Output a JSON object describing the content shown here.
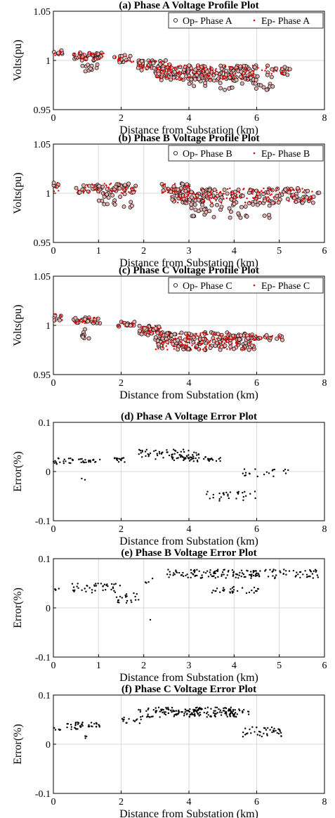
{
  "chart_data": [
    {
      "type": "scatter",
      "title": "(a) Phase A Voltage Profile Plot",
      "xlabel": "Distance from Substation (km)",
      "ylabel": "Volts(pu)",
      "xlim": [
        0,
        8
      ],
      "ylim": [
        0.95,
        1.05
      ],
      "xticks": [
        "0",
        "2",
        "4",
        "6",
        "8"
      ],
      "yticks": [
        "0.95",
        "1",
        "1.05"
      ],
      "grid": true,
      "legend_position": "top-right",
      "series": [
        {
          "name": "Op- Phase A",
          "marker": "circle",
          "color": "#000000",
          "clusters": [
            [
              0.0,
              0.3,
              1.005,
              1.012,
              6
            ],
            [
              0.6,
              1.5,
              1.0,
              1.008,
              30
            ],
            [
              0.8,
              1.3,
              0.988,
              0.998,
              10
            ],
            [
              1.8,
              2.4,
              0.998,
              1.006,
              14
            ],
            [
              2.5,
              3.5,
              0.99,
              1.0,
              40
            ],
            [
              3.0,
              6.0,
              0.98,
              0.995,
              140
            ],
            [
              4.0,
              6.6,
              0.97,
              0.985,
              40
            ],
            [
              6.0,
              7.0,
              0.985,
              0.995,
              16
            ]
          ]
        },
        {
          "name": "Ep- Phase A",
          "marker": "dot",
          "color": "#e00000",
          "clusters": [
            [
              0.0,
              0.3,
              1.005,
              1.012,
              6
            ],
            [
              0.6,
              1.5,
              1.0,
              1.008,
              30
            ],
            [
              1.8,
              2.4,
              0.998,
              1.006,
              14
            ],
            [
              2.5,
              3.5,
              0.99,
              1.0,
              40
            ],
            [
              3.0,
              6.0,
              0.98,
              0.995,
              140
            ],
            [
              6.0,
              7.0,
              0.985,
              0.995,
              16
            ]
          ]
        }
      ]
    },
    {
      "type": "scatter",
      "title": "(b) Phase B Voltage Profile Plot",
      "xlabel": "Distance from Substation (km)",
      "ylabel": "Volts(pu)",
      "xlim": [
        0,
        6
      ],
      "ylim": [
        0.95,
        1.05
      ],
      "xticks": [
        "0",
        "1",
        "2",
        "3",
        "4",
        "5",
        "6"
      ],
      "yticks": [
        "0.95",
        "1",
        "1.05"
      ],
      "grid": true,
      "legend_position": "top-right",
      "series": [
        {
          "name": "Op- Phase B",
          "marker": "circle",
          "color": "#000000",
          "clusters": [
            [
              0.0,
              0.15,
              1.0,
              1.012,
              5
            ],
            [
              0.5,
              1.9,
              1.0,
              1.01,
              50
            ],
            [
              1.0,
              1.8,
              0.985,
              1.0,
              20
            ],
            [
              2.4,
              3.0,
              1.0,
              1.01,
              24
            ],
            [
              2.6,
              5.6,
              0.99,
              1.005,
              140
            ],
            [
              3.0,
              4.8,
              0.975,
              0.99,
              40
            ],
            [
              5.6,
              5.9,
              0.99,
              1.003,
              8
            ]
          ]
        },
        {
          "name": "Ep- Phase B",
          "marker": "dot",
          "color": "#e00000",
          "clusters": [
            [
              0.0,
              0.15,
              1.0,
              1.012,
              5
            ],
            [
              0.5,
              1.9,
              1.0,
              1.01,
              50
            ],
            [
              2.4,
              3.0,
              1.0,
              1.01,
              24
            ],
            [
              2.6,
              5.6,
              0.99,
              1.005,
              140
            ],
            [
              5.6,
              5.9,
              0.99,
              1.003,
              8
            ]
          ]
        }
      ]
    },
    {
      "type": "scatter",
      "title": "(c) Phase C Voltage Profile Plot",
      "xlabel": "Distance from Substation (km)",
      "ylabel": "Volts(pu)",
      "xlim": [
        0,
        8
      ],
      "ylim": [
        0.95,
        1.05
      ],
      "xticks": [
        "0",
        "2",
        "4",
        "6",
        "8"
      ],
      "yticks": [
        "0.95",
        "1",
        "1.05"
      ],
      "grid": true,
      "legend_position": "top-right",
      "series": [
        {
          "name": "Op- Phase C",
          "marker": "circle",
          "color": "#000000",
          "clusters": [
            [
              0.0,
              0.3,
              1.005,
              1.012,
              6
            ],
            [
              0.6,
              1.4,
              1.002,
              1.008,
              24
            ],
            [
              0.8,
              1.1,
              0.985,
              0.998,
              8
            ],
            [
              1.9,
              2.4,
              0.998,
              1.004,
              12
            ],
            [
              2.5,
              3.2,
              0.99,
              1.0,
              24
            ],
            [
              3.0,
              6.0,
              0.975,
              0.993,
              150
            ],
            [
              5.0,
              6.8,
              0.985,
              0.99,
              24
            ]
          ]
        },
        {
          "name": "Ep- Phase C",
          "marker": "dot",
          "color": "#e00000",
          "clusters": [
            [
              0.0,
              0.3,
              1.005,
              1.012,
              6
            ],
            [
              0.6,
              1.4,
              1.002,
              1.008,
              24
            ],
            [
              1.9,
              2.4,
              0.998,
              1.004,
              12
            ],
            [
              2.5,
              3.2,
              0.99,
              1.0,
              24
            ],
            [
              3.0,
              6.0,
              0.975,
              0.993,
              150
            ],
            [
              5.0,
              6.8,
              0.985,
              0.99,
              24
            ]
          ]
        }
      ]
    },
    {
      "type": "scatter",
      "title": "(d) Phase A Voltage Error Plot",
      "xlabel": "Distance from Substation (km)",
      "ylabel": "Error(%)",
      "xlim": [
        0,
        8
      ],
      "ylim": [
        -0.1,
        0.1
      ],
      "xticks": [
        "0",
        "2",
        "4",
        "6",
        "8"
      ],
      "yticks": [
        "-0.1",
        "0",
        "0.1"
      ],
      "grid": true,
      "series": [
        {
          "name": "",
          "marker": "dot",
          "color": "#000000",
          "clusters": [
            [
              0.0,
              1.4,
              0.015,
              0.028,
              40
            ],
            [
              1.8,
              2.4,
              0.018,
              0.028,
              14
            ],
            [
              2.5,
              4.3,
              0.025,
              0.045,
              60
            ],
            [
              3.5,
              5.0,
              0.02,
              0.03,
              40
            ],
            [
              4.5,
              6.0,
              -0.06,
              -0.04,
              30
            ],
            [
              5.5,
              7.0,
              -0.01,
              0.005,
              20
            ],
            [
              0.8,
              1.0,
              -0.02,
              -0.01,
              2
            ]
          ]
        }
      ]
    },
    {
      "type": "scatter",
      "title": "(e) Phase B Voltage Error Plot",
      "xlabel": "Distance from Substation (km)",
      "ylabel": "Error(%)",
      "xlim": [
        0,
        6
      ],
      "ylim": [
        -0.1,
        0.1
      ],
      "xticks": [
        "0",
        "1",
        "2",
        "3",
        "4",
        "5",
        "6"
      ],
      "yticks": [
        "-0.1",
        "0",
        "0.1"
      ],
      "grid": true,
      "series": [
        {
          "name": "",
          "marker": "dot",
          "color": "#000000",
          "clusters": [
            [
              0.0,
              0.2,
              0.035,
              0.04,
              4
            ],
            [
              0.4,
              1.5,
              0.03,
              0.05,
              40
            ],
            [
              1.4,
              1.9,
              0.01,
              0.03,
              20
            ],
            [
              2.0,
              2.2,
              0.05,
              0.06,
              4
            ],
            [
              2.5,
              5.9,
              0.06,
              0.078,
              160
            ],
            [
              3.5,
              4.6,
              0.03,
              0.045,
              30
            ],
            [
              2.1,
              2.15,
              -0.025,
              -0.02,
              1
            ]
          ]
        }
      ]
    },
    {
      "type": "scatter",
      "title": "(f) Phase C Voltage Error Plot",
      "xlabel": "Distance from Substation (km)",
      "ylabel": "Error(%)",
      "xlim": [
        0,
        8
      ],
      "ylim": [
        -0.1,
        0.1
      ],
      "xticks": [
        "0",
        "2",
        "4",
        "6",
        "8"
      ],
      "yticks": [
        "-0.1",
        "0",
        "0.1"
      ],
      "grid": true,
      "series": [
        {
          "name": "",
          "marker": "dot",
          "color": "#000000",
          "clusters": [
            [
              0.0,
              0.3,
              0.028,
              0.035,
              5
            ],
            [
              0.4,
              1.4,
              0.03,
              0.045,
              40
            ],
            [
              2.0,
              2.6,
              0.04,
              0.055,
              14
            ],
            [
              2.5,
              5.4,
              0.055,
              0.075,
              150
            ],
            [
              3.5,
              5.8,
              0.06,
              0.072,
              40
            ],
            [
              5.5,
              7.0,
              0.015,
              0.035,
              40
            ],
            [
              0.8,
              1.0,
              0.01,
              0.02,
              3
            ]
          ]
        }
      ]
    }
  ]
}
